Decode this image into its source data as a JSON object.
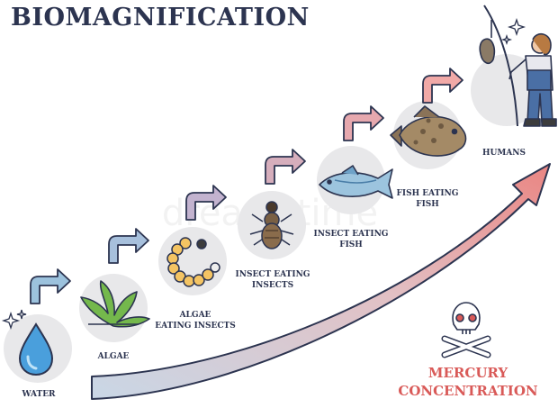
{
  "title": "BIOMAGNIFICATION",
  "stages": [
    {
      "label": "WATER",
      "icon": "water-drop-icon"
    },
    {
      "label": "ALGAE",
      "icon": "algae-icon"
    },
    {
      "label": "ALGAE\nEATING INSECTS",
      "icon": "larva-icon"
    },
    {
      "label": "INSECT EATING\nINSECTS",
      "icon": "insect-icon"
    },
    {
      "label": "INSECT EATING\nFISH",
      "icon": "fish-icon"
    },
    {
      "label": "FISH EATING\nFISH",
      "icon": "big-fish-icon"
    },
    {
      "label": "HUMANS",
      "icon": "fisherman-icon"
    }
  ],
  "mercury_label": "MERCURY\nCONCENTRATION",
  "watermark": "dreamstime",
  "colors": {
    "title": "#2c3450",
    "circle": "#e8e8ea",
    "step_arrow_fill": "#f1a9a7",
    "step_arrow_fill_start": "#9cc2dd",
    "big_arrow_start": "#b9cce0",
    "big_arrow_end": "#e98380",
    "mercury": "#d95a58"
  }
}
